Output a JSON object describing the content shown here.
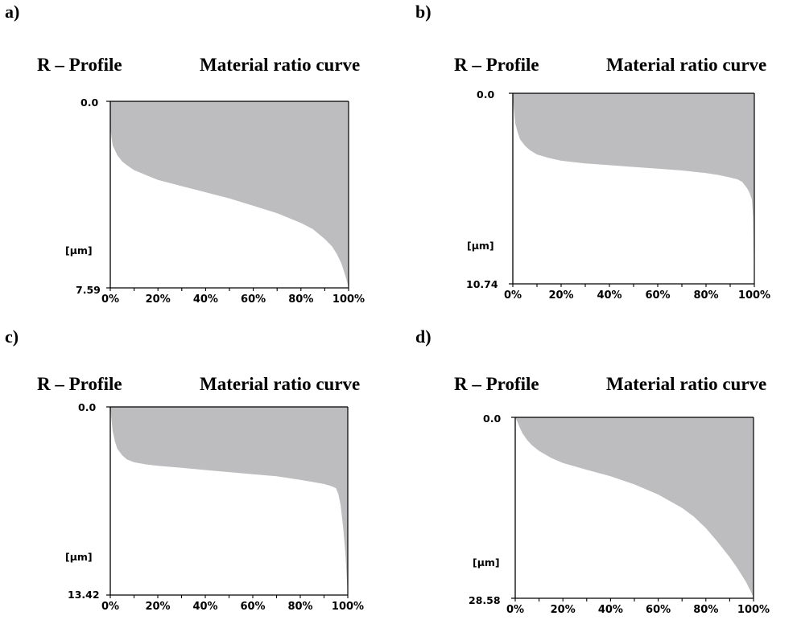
{
  "panels": [
    {
      "letter": "a)",
      "title_left": "R – Profile",
      "title_right": "Material ratio curve"
    },
    {
      "letter": "b)",
      "title_left": "R – Profile",
      "title_right": "Material ratio curve"
    },
    {
      "letter": "c)",
      "title_left": "R – Profile",
      "title_right": "Material ratio curve"
    },
    {
      "letter": "d)",
      "title_left": "R – Profile",
      "title_right": "Material ratio curve"
    }
  ],
  "colors": {
    "fill": "#bdbdbf",
    "axis": "#000000"
  },
  "chart_data": [
    {
      "type": "area",
      "xlabel": "",
      "ylabel": "[µm]",
      "x_ticks": [
        "0%",
        "20%",
        "40%",
        "60%",
        "80%",
        "100%"
      ],
      "y_top_label": "0.0",
      "y_bottom_label": "7.59",
      "xlim": [
        0,
        100
      ],
      "ylim": [
        0,
        7.59
      ],
      "y_inverted": true,
      "x": [
        0,
        0.5,
        1,
        2,
        3,
        5,
        7,
        10,
        15,
        20,
        30,
        40,
        50,
        60,
        70,
        80,
        85,
        90,
        93,
        95,
        97,
        98,
        99,
        100
      ],
      "values": [
        1.1,
        1.45,
        1.8,
        2.0,
        2.2,
        2.45,
        2.6,
        2.8,
        3.0,
        3.2,
        3.45,
        3.7,
        3.95,
        4.25,
        4.55,
        4.95,
        5.2,
        5.6,
        5.9,
        6.2,
        6.6,
        6.9,
        7.2,
        7.59
      ]
    },
    {
      "type": "area",
      "xlabel": "",
      "ylabel": "[µm]",
      "x_ticks": [
        "0%",
        "20%",
        "40%",
        "60%",
        "80%",
        "100%"
      ],
      "y_top_label": "0.0",
      "y_bottom_label": "10.74",
      "xlim": [
        0,
        100
      ],
      "ylim": [
        0,
        10.74
      ],
      "y_inverted": true,
      "x": [
        0,
        0.5,
        1,
        2,
        3,
        5,
        7,
        10,
        15,
        20,
        30,
        40,
        50,
        60,
        70,
        80,
        85,
        90,
        93,
        95,
        97,
        98,
        99,
        99.5,
        100
      ],
      "values": [
        0.3,
        1.0,
        1.7,
        2.2,
        2.6,
        2.95,
        3.2,
        3.45,
        3.65,
        3.8,
        3.95,
        4.05,
        4.15,
        4.25,
        4.35,
        4.5,
        4.6,
        4.75,
        4.85,
        5.0,
        5.35,
        5.6,
        6.0,
        7.0,
        10.74
      ]
    },
    {
      "type": "area",
      "xlabel": "",
      "ylabel": "[µm]",
      "x_ticks": [
        "0%",
        "20%",
        "40%",
        "60%",
        "80%",
        "100%"
      ],
      "y_top_label": "0.0",
      "y_bottom_label": "13.42",
      "xlim": [
        0,
        100
      ],
      "ylim": [
        0,
        13.42
      ],
      "y_inverted": true,
      "x": [
        0,
        0.5,
        1,
        2,
        3,
        5,
        7,
        10,
        15,
        20,
        30,
        40,
        50,
        60,
        70,
        80,
        85,
        90,
        93,
        95,
        96,
        97,
        98,
        99,
        100
      ],
      "values": [
        0.0,
        0.9,
        1.7,
        2.5,
        3.0,
        3.45,
        3.75,
        3.95,
        4.1,
        4.2,
        4.35,
        4.5,
        4.65,
        4.8,
        4.95,
        5.2,
        5.35,
        5.5,
        5.65,
        5.8,
        6.2,
        7.0,
        8.5,
        10.5,
        13.42
      ]
    },
    {
      "type": "area",
      "xlabel": "",
      "ylabel": "[µm]",
      "x_ticks": [
        "0%",
        "20%",
        "40%",
        "60%",
        "80%",
        "100%"
      ],
      "y_top_label": "0.0",
      "y_bottom_label": "28.58",
      "xlim": [
        0,
        100
      ],
      "ylim": [
        0,
        28.58
      ],
      "y_inverted": true,
      "x": [
        0,
        1,
        2,
        3,
        5,
        7,
        10,
        15,
        20,
        30,
        40,
        50,
        60,
        70,
        75,
        80,
        85,
        90,
        93,
        95,
        97,
        98,
        99,
        100
      ],
      "values": [
        0.0,
        0.8,
        1.7,
        2.5,
        3.6,
        4.4,
        5.3,
        6.4,
        7.2,
        8.3,
        9.3,
        10.6,
        12.2,
        14.3,
        15.7,
        17.5,
        19.7,
        22.1,
        23.7,
        24.9,
        26.1,
        26.9,
        27.6,
        28.58
      ]
    }
  ]
}
